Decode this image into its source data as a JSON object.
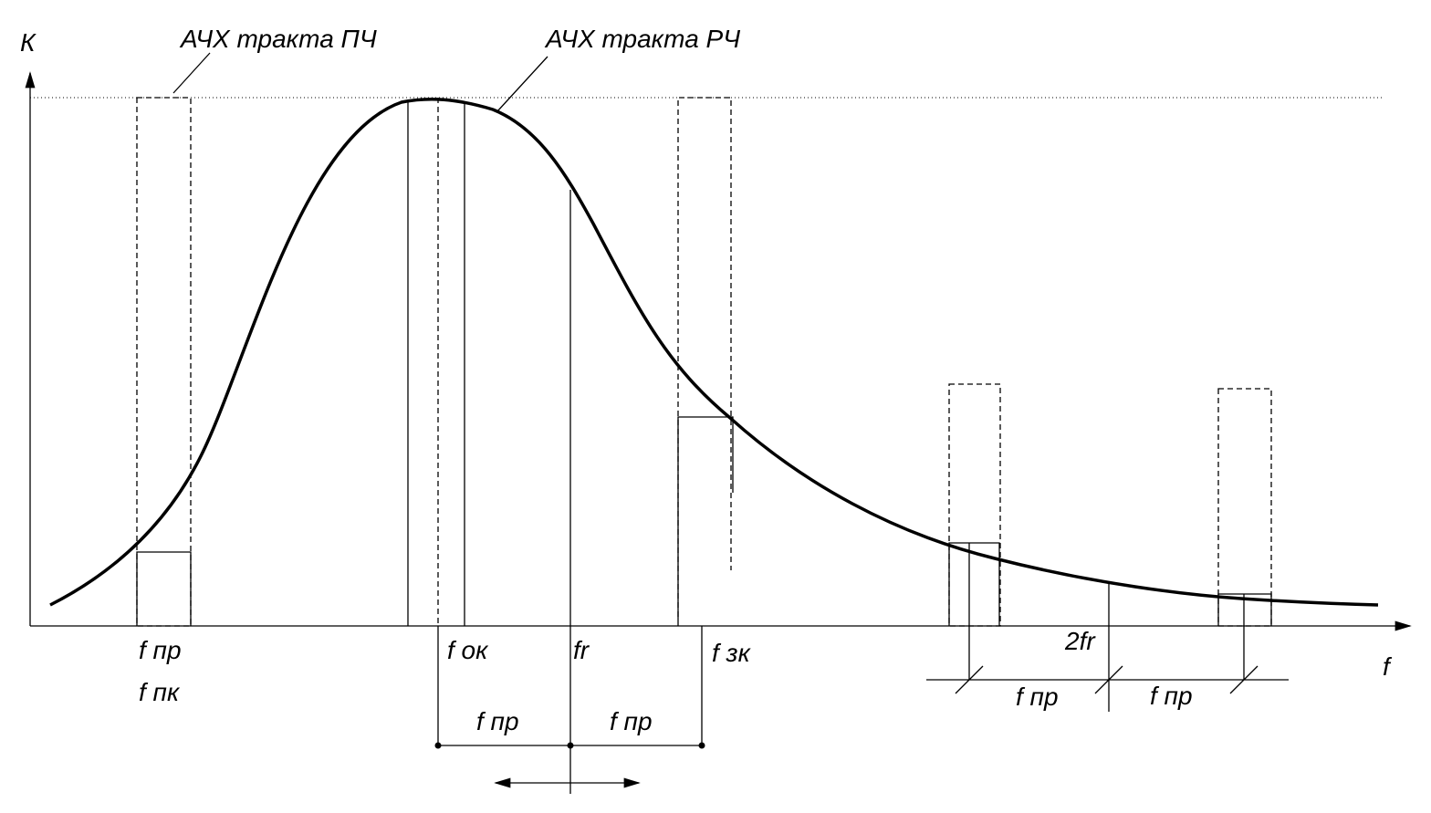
{
  "axes": {
    "y_label": "К",
    "x_label": "f"
  },
  "callouts": {
    "if_response": "АЧХ тракта ПЧ",
    "rf_response": "АЧХ тракта РЧ"
  },
  "x_labels": {
    "f_if": "f пр",
    "f_pk": "f пк",
    "f_ok": "f ок",
    "f_r": "fr",
    "f_zk": "f зк",
    "two_f_r": "2fr"
  },
  "dimensions": {
    "left_lower": "f пр",
    "right_lower": "f пр",
    "left_upper": "f пр",
    "right_upper": "f пр"
  }
}
